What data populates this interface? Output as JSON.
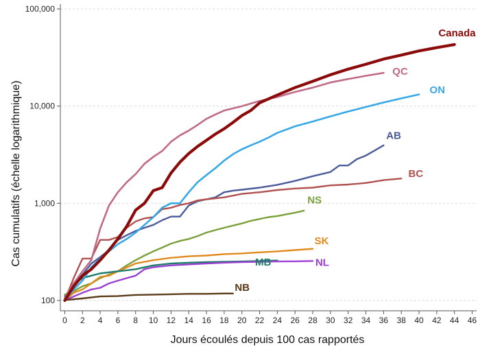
{
  "chart_data": {
    "type": "line",
    "title": "",
    "xlabel": "Jours écoulés depuis 100 cas rapportés",
    "ylabel": "Cas cumulatifs (échelle logarithmique)",
    "yscale": "log",
    "xlim": [
      -0.5,
      46.5
    ],
    "ylim": [
      100,
      100000
    ],
    "xticks": [
      0,
      2,
      4,
      6,
      8,
      10,
      12,
      14,
      16,
      18,
      20,
      22,
      24,
      26,
      28,
      30,
      32,
      34,
      36,
      38,
      40,
      42,
      44,
      46
    ],
    "yticks": [
      {
        "value": 100,
        "label": "100"
      },
      {
        "value": 1000,
        "label": "1,000"
      },
      {
        "value": 10000,
        "label": "10,000"
      },
      {
        "value": 100000,
        "label": "100,000"
      }
    ],
    "grid": true,
    "series": [
      {
        "name": "Canada",
        "color": "#8b0a0a",
        "width": 4.2,
        "label_at": [
          42.2,
          52000
        ],
        "x": [
          0,
          1,
          2,
          3,
          4,
          5,
          6,
          7,
          8,
          9,
          10,
          11,
          12,
          13,
          14,
          15,
          16,
          17,
          18,
          19,
          20,
          21,
          22,
          24,
          26,
          28,
          30,
          32,
          34,
          36,
          38,
          40,
          42,
          44
        ],
        "y": [
          100,
          140,
          180,
          210,
          260,
          330,
          430,
          580,
          850,
          1000,
          1350,
          1450,
          2050,
          2650,
          3250,
          3850,
          4450,
          5150,
          5850,
          6800,
          8000,
          9000,
          10800,
          13000,
          15500,
          18000,
          21000,
          24000,
          27000,
          30500,
          33500,
          37000,
          40000,
          43000
        ]
      },
      {
        "name": "QC",
        "color": "#c06a85",
        "width": 2.6,
        "label_at": [
          37,
          21000
        ],
        "x": [
          0,
          1,
          2,
          3,
          4,
          5,
          6,
          7,
          8,
          9,
          10,
          11,
          12,
          13,
          14,
          15,
          16,
          17,
          18,
          20,
          22,
          24,
          26,
          28,
          30,
          32,
          34,
          36
        ],
        "y": [
          105,
          150,
          200,
          260,
          550,
          950,
          1300,
          1650,
          2000,
          2550,
          3000,
          3450,
          4300,
          5000,
          5600,
          6400,
          7400,
          8200,
          9000,
          10000,
          11300,
          12400,
          14000,
          15500,
          17500,
          19000,
          20500,
          22000
        ]
      },
      {
        "name": "ON",
        "color": "#36a8e6",
        "width": 2.6,
        "label_at": [
          41.2,
          13500
        ],
        "x": [
          0,
          1,
          2,
          3,
          4,
          5,
          6,
          7,
          8,
          9,
          10,
          11,
          12,
          13,
          14,
          15,
          16,
          17,
          18,
          19,
          20,
          21,
          22,
          23,
          24,
          26,
          28,
          30,
          32,
          34,
          36,
          38,
          40
        ],
        "y": [
          100,
          130,
          160,
          220,
          270,
          320,
          380,
          430,
          500,
          600,
          720,
          900,
          1000,
          1000,
          1300,
          1650,
          1950,
          2300,
          2750,
          3200,
          3600,
          3950,
          4300,
          4750,
          5300,
          6200,
          6950,
          7850,
          8800,
          9800,
          10900,
          12000,
          13200
        ]
      },
      {
        "name": "AB",
        "color": "#4a5a9a",
        "width": 2.4,
        "label_at": [
          36.3,
          4600
        ],
        "x": [
          0,
          1,
          2,
          3,
          4,
          5,
          6,
          7,
          8,
          9,
          10,
          11,
          12,
          13,
          14,
          15,
          16,
          17,
          18,
          19,
          20,
          22,
          24,
          26,
          28,
          30,
          31,
          32,
          33,
          34,
          35,
          36
        ],
        "y": [
          110,
          145,
          185,
          240,
          280,
          330,
          420,
          470,
          520,
          560,
          600,
          670,
          730,
          730,
          950,
          1050,
          1100,
          1150,
          1300,
          1350,
          1380,
          1450,
          1550,
          1700,
          1900,
          2100,
          2450,
          2450,
          2850,
          3100,
          3500,
          3950
        ]
      },
      {
        "name": "BC",
        "color": "#b25050",
        "width": 2.4,
        "label_at": [
          38.8,
          1870
        ],
        "x": [
          0,
          1,
          2,
          3,
          4,
          5,
          6,
          7,
          8,
          9,
          10,
          11,
          12,
          13,
          14,
          15,
          16,
          18,
          20,
          22,
          24,
          26,
          28,
          30,
          32,
          34,
          36,
          38
        ],
        "y": [
          100,
          170,
          270,
          270,
          420,
          420,
          450,
          560,
          650,
          700,
          720,
          870,
          900,
          960,
          1000,
          1070,
          1100,
          1150,
          1250,
          1300,
          1370,
          1420,
          1450,
          1530,
          1560,
          1620,
          1730,
          1800
        ]
      },
      {
        "name": "NS",
        "color": "#7aa03a",
        "width": 2.4,
        "label_at": [
          27.4,
          1000
        ],
        "x": [
          0,
          1,
          2,
          3,
          4,
          5,
          6,
          7,
          8,
          9,
          10,
          11,
          12,
          13,
          14,
          15,
          16,
          17,
          18,
          19,
          20,
          21,
          22,
          23,
          24,
          25,
          26,
          27
        ],
        "y": [
          115,
          125,
          140,
          150,
          170,
          185,
          200,
          230,
          260,
          290,
          320,
          350,
          385,
          410,
          430,
          460,
          500,
          530,
          560,
          590,
          620,
          660,
          690,
          720,
          740,
          770,
          800,
          840
        ]
      },
      {
        "name": "SK",
        "color": "#e08a1e",
        "width": 2.4,
        "label_at": [
          28.2,
          380
        ],
        "x": [
          0,
          1,
          2,
          3,
          4,
          5,
          6,
          8,
          10,
          12,
          14,
          16,
          18,
          20,
          22,
          24,
          26,
          28
        ],
        "y": [
          100,
          120,
          130,
          150,
          175,
          180,
          200,
          240,
          260,
          275,
          285,
          290,
          300,
          305,
          313,
          320,
          330,
          340
        ]
      },
      {
        "name": "MB",
        "color": "#1e7a6a",
        "width": 2.4,
        "label_at": [
          21.5,
          230
        ],
        "x": [
          0,
          1,
          2,
          3,
          4,
          5,
          6,
          8,
          10,
          12,
          14,
          16,
          18,
          20,
          22,
          24
        ],
        "y": [
          100,
          145,
          170,
          180,
          190,
          195,
          200,
          210,
          230,
          240,
          245,
          248,
          250,
          252,
          255,
          258
        ]
      },
      {
        "name": "NL",
        "color": "#9a3fd1",
        "width": 2.4,
        "label_at": [
          28.3,
          228
        ],
        "x": [
          0,
          1,
          2,
          3,
          4,
          5,
          6,
          7,
          8,
          9,
          10,
          12,
          14,
          16,
          18,
          20,
          22,
          24,
          26,
          28
        ],
        "y": [
          100,
          110,
          120,
          130,
          135,
          150,
          160,
          170,
          180,
          210,
          220,
          230,
          235,
          240,
          245,
          248,
          250,
          252,
          253,
          255
        ]
      },
      {
        "name": "NB",
        "color": "#5a3a18",
        "width": 2.4,
        "label_at": [
          19.2,
          126
        ],
        "x": [
          0,
          2,
          4,
          6,
          8,
          10,
          12,
          14,
          16,
          18,
          19
        ],
        "y": [
          101,
          105,
          110,
          111,
          114,
          115,
          116,
          117,
          117,
          118,
          118
        ]
      }
    ]
  }
}
